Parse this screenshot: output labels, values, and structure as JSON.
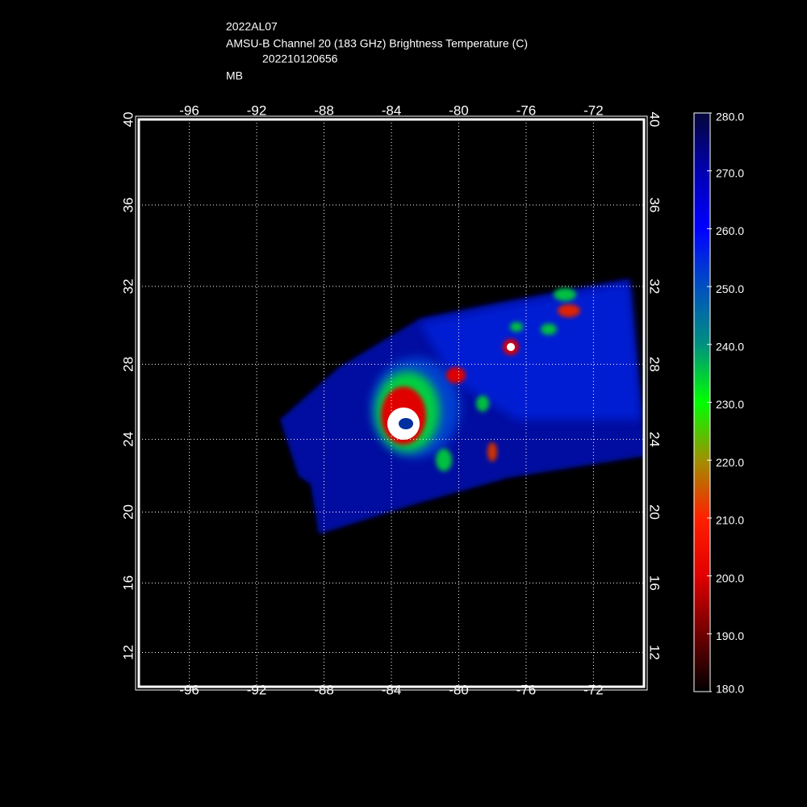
{
  "chart_data": {
    "type": "map",
    "title_lines": [
      "2022AL07",
      "AMSU-B Channel 20 (183 GHz) Brightness Temperature (C)",
      "202210120656",
      "MB"
    ],
    "projection": "mercator",
    "xlim": [
      -99,
      -69
    ],
    "xticks": [
      -96,
      -92,
      -88,
      -84,
      -80,
      -76,
      -72
    ],
    "ylim": [
      10,
      40
    ],
    "yticks": [
      12,
      16,
      20,
      24,
      28,
      32,
      36,
      40
    ],
    "grid": true,
    "colorbar": {
      "lim": [
        180,
        280
      ],
      "ticks": [
        {
          "value": 180,
          "label": "180.0"
        },
        {
          "value": 190,
          "label": "190.0"
        },
        {
          "value": 200,
          "label": "200.0"
        },
        {
          "value": 210,
          "label": "210.0"
        },
        {
          "value": 220,
          "label": "220.0"
        },
        {
          "value": 230,
          "label": "230.0"
        },
        {
          "value": 240,
          "label": "240.0"
        },
        {
          "value": 250,
          "label": "250.0"
        },
        {
          "value": 260,
          "label": "260.0"
        },
        {
          "value": 270,
          "label": "270.0"
        },
        {
          "value": 280,
          "label": "280.0"
        }
      ],
      "colormap": [
        "#000000",
        "#700000",
        "#e00000",
        "#ff2000",
        "#a09000",
        "#00ff00",
        "#009080",
        "#0050c0",
        "#0000ff",
        "#0000b0",
        "#06063a"
      ]
    }
  }
}
